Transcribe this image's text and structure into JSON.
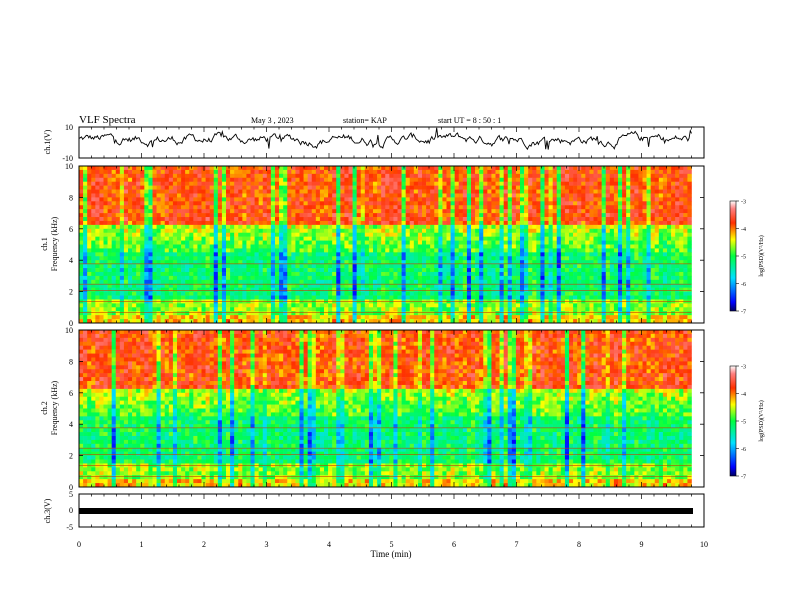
{
  "header": {
    "title": "VLF Spectra",
    "date": "May 3 , 2023",
    "station": "station= KAP",
    "start": "start UT = 8 : 50 : 1"
  },
  "chart_data": [
    {
      "type": "line",
      "panel": "ch1-waveform",
      "ylabel": "ch.1(V)",
      "ylim": [
        -10,
        10
      ],
      "yticks": [
        "10",
        "-10"
      ],
      "xlim": [
        0,
        10
      ]
    },
    {
      "type": "heatmap",
      "panel": "ch1-spectrogram",
      "ylabel_line1": "ch.1",
      "ylabel_line2": "Frequency (kHz)",
      "ylim": [
        0,
        10
      ],
      "yticks": [
        "0",
        "2",
        "4",
        "6",
        "8",
        "10"
      ],
      "xlim": [
        0,
        10
      ],
      "data_extent_min": 9.8,
      "colorbar": {
        "label": "log(PSD)(V²/Hz)",
        "ticks": [
          "-3",
          "-4",
          "-5",
          "-6",
          "-7"
        ],
        "range": [
          -7,
          -3
        ]
      }
    },
    {
      "type": "heatmap",
      "panel": "ch2-spectrogram",
      "ylabel_line1": "ch.2",
      "ylabel_line2": "Frequency (kHz)",
      "ylim": [
        0,
        10
      ],
      "yticks": [
        "0",
        "2",
        "4",
        "6",
        "8",
        "10"
      ],
      "xlim": [
        0,
        10
      ],
      "data_extent_min": 9.8,
      "colorbar": {
        "label": "log(PSD)(V²/Hz)",
        "ticks": [
          "-3",
          "-4",
          "-5",
          "-6",
          "-7"
        ],
        "range": [
          -7,
          -3
        ]
      }
    },
    {
      "type": "line",
      "panel": "ch3-waveform",
      "ylabel": "ch.3(V)",
      "ylim": [
        -5,
        5
      ],
      "yticks": [
        "5",
        "0",
        "-5"
      ],
      "xlim": [
        0,
        10
      ],
      "xlabel": "Time (min)",
      "xticks": [
        "0",
        "1",
        "2",
        "3",
        "4",
        "5",
        "6",
        "7",
        "8",
        "9",
        "10"
      ]
    }
  ]
}
